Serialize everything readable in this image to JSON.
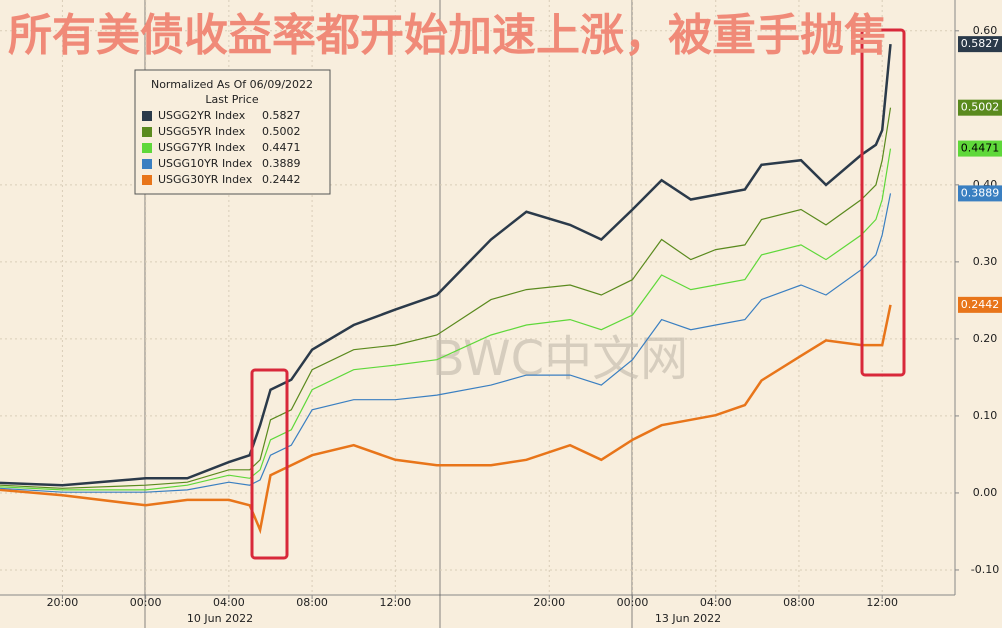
{
  "chart_data": {
    "type": "line",
    "title": "所有美债收益率都开始加速上涨，被重手抛售",
    "watermark": "BWC中文网",
    "legend_header": "Normalized As Of 06/09/2022",
    "legend_subheader": "Last Price",
    "date_labels": [
      "10 Jun 2022",
      "13 Jun 2022"
    ],
    "x": [
      -1.0,
      2.0,
      6.0,
      8.0,
      10.0,
      11.0,
      11.5,
      12.0,
      13.0,
      14.0,
      16.0,
      18.0,
      20.0,
      22.6,
      24.3,
      26.4,
      27.9,
      29.4,
      30.8,
      32.2,
      33.4,
      34.8,
      35.6,
      37.5,
      38.7,
      40.4,
      41.1,
      41.4,
      41.8
    ],
    "series": [
      {
        "name": "USGG2YR Index",
        "color": "#2b3a4a",
        "values": [
          0.013,
          0.01,
          0.019,
          0.019,
          0.04,
          0.049,
          0.088,
          0.134,
          0.147,
          0.186,
          0.218,
          0.238,
          0.257,
          0.329,
          0.365,
          0.348,
          0.329,
          0.368,
          0.406,
          0.381,
          0.387,
          0.394,
          0.426,
          0.432,
          0.4,
          0.439,
          0.452,
          0.471,
          0.5827
        ]
      },
      {
        "name": "USGG5YR Index",
        "color": "#5a8a1e",
        "values": [
          0.01,
          0.006,
          0.01,
          0.014,
          0.03,
          0.03,
          0.043,
          0.095,
          0.108,
          0.16,
          0.186,
          0.192,
          0.205,
          0.251,
          0.264,
          0.27,
          0.257,
          0.277,
          0.329,
          0.303,
          0.316,
          0.322,
          0.355,
          0.368,
          0.348,
          0.381,
          0.4,
          0.432,
          0.5002
        ]
      },
      {
        "name": "USGG7YR Index",
        "color": "#5fd83a",
        "values": [
          0.008,
          0.004,
          0.004,
          0.01,
          0.023,
          0.019,
          0.03,
          0.069,
          0.082,
          0.134,
          0.16,
          0.166,
          0.173,
          0.205,
          0.218,
          0.225,
          0.212,
          0.231,
          0.283,
          0.264,
          0.27,
          0.277,
          0.309,
          0.322,
          0.303,
          0.335,
          0.355,
          0.381,
          0.4471
        ]
      },
      {
        "name": "USGG10YR Index",
        "color": "#3a7fc1",
        "values": [
          0.006,
          0.001,
          0.001,
          0.004,
          0.014,
          0.01,
          0.017,
          0.049,
          0.062,
          0.108,
          0.121,
          0.121,
          0.127,
          0.14,
          0.153,
          0.153,
          0.14,
          0.173,
          0.225,
          0.212,
          0.218,
          0.225,
          0.251,
          0.27,
          0.257,
          0.29,
          0.309,
          0.335,
          0.3889
        ]
      },
      {
        "name": "USGG30YR Index",
        "color": "#e8751a",
        "values": [
          0.004,
          -0.003,
          -0.016,
          -0.009,
          -0.009,
          -0.016,
          -0.048,
          0.023,
          0.036,
          0.049,
          0.062,
          0.043,
          0.036,
          0.036,
          0.043,
          0.062,
          0.043,
          0.069,
          0.088,
          0.095,
          0.101,
          0.114,
          0.146,
          0.178,
          0.198,
          0.192,
          0.192,
          0.192,
          0.2442
        ]
      }
    ],
    "xlim": [
      -1,
      44.9
    ],
    "xticks": [
      {
        "value": 2,
        "label": "20:00"
      },
      {
        "value": 6,
        "label": "00:00"
      },
      {
        "value": 10,
        "label": "04:00"
      },
      {
        "value": 14,
        "label": "08:00"
      },
      {
        "value": 18,
        "label": "12:00"
      },
      {
        "value": 25.4,
        "label": "20:00"
      },
      {
        "value": 29.4,
        "label": "00:00"
      },
      {
        "value": 33.4,
        "label": "04:00"
      },
      {
        "value": 37.4,
        "label": "08:00"
      },
      {
        "value": 41.4,
        "label": "12:00"
      }
    ],
    "ylim": [
      -0.1325,
      0.64
    ],
    "yticks": [
      {
        "value": -0.1,
        "label": "-0.10"
      },
      {
        "value": 0,
        "label": "0.00"
      },
      {
        "value": 0.1,
        "label": "0.10"
      },
      {
        "value": 0.2,
        "label": "0.20"
      },
      {
        "value": 0.3,
        "label": "0.30"
      },
      {
        "value": 0.4,
        "label": "0.40"
      },
      {
        "value": 0.6,
        "label": "0.60"
      }
    ],
    "grid": true
  }
}
